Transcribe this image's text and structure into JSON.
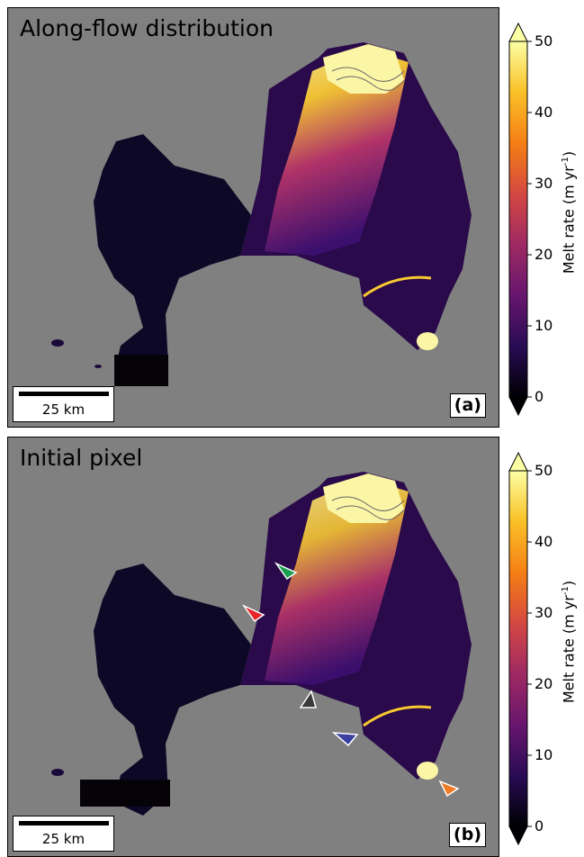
{
  "panels": [
    {
      "id": "a",
      "title": "Along-flow distribution",
      "letter": "(a)",
      "scalebar_label": "25 km"
    },
    {
      "id": "b",
      "title": "Initial pixel",
      "letter": "(b)",
      "scalebar_label": "25 km",
      "arrow_markers": [
        {
          "color": "#1a9e50",
          "name": "green"
        },
        {
          "color": "#e8242a",
          "name": "red"
        },
        {
          "color": "#3a3a3a",
          "name": "black"
        },
        {
          "color": "#3a3fa0",
          "name": "blue"
        },
        {
          "color": "#f07a20",
          "name": "orange"
        }
      ]
    }
  ],
  "colorbar": {
    "label_main": "Melt rate (m yr",
    "label_sup": "-1",
    "label_close": ")",
    "ticks": [
      "0",
      "10",
      "20",
      "30",
      "40",
      "50"
    ],
    "min": 0,
    "max": 50,
    "colormap": "inferno",
    "colors": [
      "#000004",
      "#280b54",
      "#65156e",
      "#9f2a63",
      "#d44842",
      "#f57d15",
      "#fac228",
      "#fcffa4"
    ]
  },
  "map_colors": {
    "background": "#808080",
    "ice_low": "#0d0826",
    "ice_mid": "#6a177a",
    "ice_high": "#f9c932",
    "ice_max": "#fbf5a6"
  }
}
